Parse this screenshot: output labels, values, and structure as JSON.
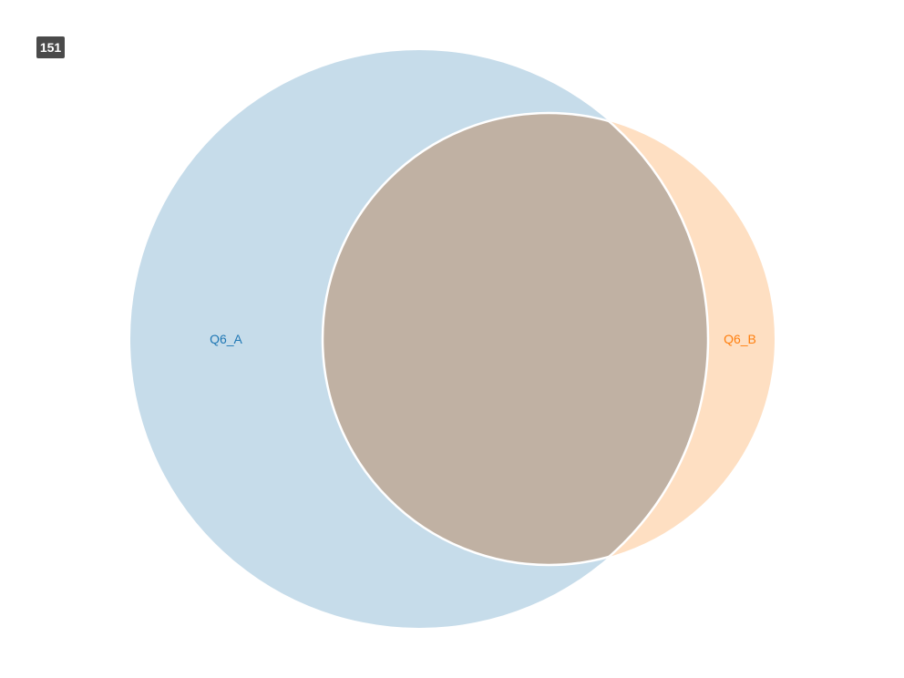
{
  "badge": {
    "text": "151"
  },
  "venn": {
    "sets": [
      {
        "name": "Q6_A",
        "color": "#1f77b4",
        "fill": "#c6dcea"
      },
      {
        "name": "Q6_B",
        "color": "#ff7f0e",
        "fill": "#fedfc2"
      }
    ],
    "overlap_fill": "#c0b1a3"
  }
}
